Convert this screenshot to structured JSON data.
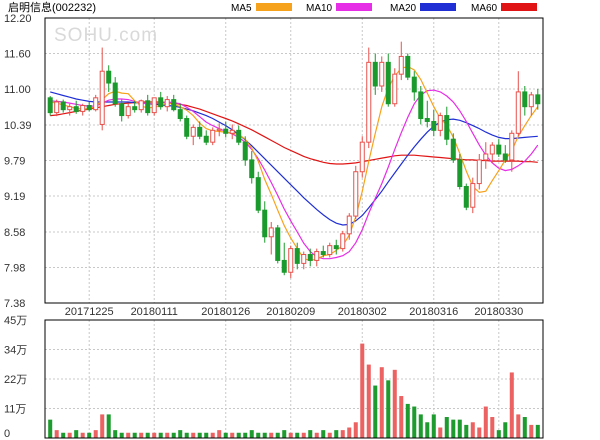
{
  "title": {
    "name": "启明信息",
    "code": "(002232)"
  },
  "watermark": "SOHU.com",
  "colors": {
    "up": "#e8514c",
    "down": "#1a9a2c",
    "volume_up": "#ec6262",
    "volume_down": "#1e9b2e",
    "grid": "#c8c8c8",
    "frame": "#000000",
    "ma5": "#f7a21c",
    "ma10": "#e62ee6",
    "ma20": "#1f2fd4",
    "ma60": "#e01414"
  },
  "chart_data": {
    "type": "candlestick",
    "ylim": [
      7.38,
      12.2
    ],
    "y_ticks": [
      "12.20",
      "11.60",
      "11.00",
      "10.39",
      "9.79",
      "9.19",
      "8.58",
      "7.98",
      "7.38"
    ],
    "x_tick_labels": [
      {
        "index": 6,
        "label": "20171225"
      },
      {
        "index": 16,
        "label": "20180111"
      },
      {
        "index": 27,
        "label": "20180126"
      },
      {
        "index": 37,
        "label": "20180209"
      },
      {
        "index": 48,
        "label": "20180302"
      },
      {
        "index": 59,
        "label": "20180316"
      },
      {
        "index": 69,
        "label": "20180330"
      }
    ],
    "legend": [
      {
        "name": "MA5",
        "color": "#f7a21c"
      },
      {
        "name": "MA10",
        "color": "#e62ee6"
      },
      {
        "name": "MA20",
        "color": "#1f2fd4"
      },
      {
        "name": "MA60",
        "color": "#e01414"
      }
    ],
    "candles": [
      [
        10.85,
        10.88,
        10.55,
        10.6
      ],
      [
        10.6,
        10.82,
        10.54,
        10.78
      ],
      [
        10.78,
        10.82,
        10.6,
        10.65
      ],
      [
        10.65,
        10.75,
        10.55,
        10.7
      ],
      [
        10.7,
        10.8,
        10.58,
        10.62
      ],
      [
        10.62,
        10.75,
        10.55,
        10.72
      ],
      [
        10.72,
        10.78,
        10.62,
        10.65
      ],
      [
        10.65,
        10.9,
        10.62,
        10.85
      ],
      [
        10.4,
        11.7,
        10.3,
        11.3
      ],
      [
        11.3,
        11.4,
        10.95,
        11.1
      ],
      [
        11.1,
        11.2,
        10.7,
        10.75
      ],
      [
        10.75,
        10.82,
        10.45,
        10.55
      ],
      [
        10.55,
        10.75,
        10.5,
        10.7
      ],
      [
        10.7,
        10.8,
        10.6,
        10.65
      ],
      [
        10.65,
        10.82,
        10.6,
        10.8
      ],
      [
        10.8,
        10.9,
        10.55,
        10.6
      ],
      [
        10.6,
        10.85,
        10.55,
        10.85
      ],
      [
        10.85,
        10.95,
        10.65,
        10.7
      ],
      [
        10.7,
        10.88,
        10.62,
        10.82
      ],
      [
        10.82,
        10.9,
        10.62,
        10.65
      ],
      [
        10.65,
        10.75,
        10.45,
        10.5
      ],
      [
        10.5,
        10.55,
        10.15,
        10.2
      ],
      [
        10.2,
        10.4,
        10.05,
        10.35
      ],
      [
        10.35,
        10.45,
        10.15,
        10.2
      ],
      [
        10.2,
        10.3,
        10.05,
        10.1
      ],
      [
        10.1,
        10.35,
        10.05,
        10.3
      ],
      [
        10.3,
        10.42,
        10.2,
        10.32
      ],
      [
        10.32,
        10.45,
        10.18,
        10.25
      ],
      [
        10.25,
        10.4,
        10.15,
        10.3
      ],
      [
        10.3,
        10.38,
        10.05,
        10.1
      ],
      [
        10.1,
        10.2,
        9.7,
        9.8
      ],
      [
        9.8,
        9.95,
        9.4,
        9.5
      ],
      [
        9.5,
        9.6,
        8.9,
        8.95
      ],
      [
        8.95,
        9.1,
        8.4,
        8.5
      ],
      [
        8.5,
        8.75,
        8.2,
        8.65
      ],
      [
        8.65,
        8.7,
        8.05,
        8.1
      ],
      [
        8.1,
        8.4,
        7.85,
        7.9
      ],
      [
        7.9,
        8.35,
        7.8,
        8.3
      ],
      [
        8.3,
        8.4,
        7.95,
        8.05
      ],
      [
        8.05,
        8.25,
        7.95,
        8.2
      ],
      [
        8.2,
        8.3,
        8.0,
        8.1
      ],
      [
        8.1,
        8.3,
        8.0,
        8.25
      ],
      [
        8.25,
        8.35,
        8.15,
        8.2
      ],
      [
        8.2,
        8.4,
        8.15,
        8.35
      ],
      [
        8.35,
        8.45,
        8.2,
        8.3
      ],
      [
        8.3,
        8.6,
        8.25,
        8.55
      ],
      [
        8.55,
        8.9,
        8.45,
        8.85
      ],
      [
        8.85,
        9.7,
        8.8,
        9.6
      ],
      [
        9.6,
        10.2,
        9.5,
        10.1
      ],
      [
        10.1,
        11.7,
        10.0,
        11.45
      ],
      [
        11.45,
        11.6,
        10.9,
        11.05
      ],
      [
        11.05,
        11.55,
        10.95,
        11.45
      ],
      [
        11.45,
        11.6,
        10.7,
        10.75
      ],
      [
        10.75,
        11.35,
        10.7,
        11.25
      ],
      [
        11.25,
        11.8,
        11.15,
        11.55
      ],
      [
        11.55,
        11.6,
        11.15,
        11.2
      ],
      [
        11.2,
        11.3,
        10.8,
        10.95
      ],
      [
        10.95,
        11.05,
        10.4,
        10.5
      ],
      [
        10.5,
        10.8,
        10.35,
        10.45
      ],
      [
        10.45,
        10.65,
        10.2,
        10.3
      ],
      [
        10.3,
        10.6,
        10.2,
        10.55
      ],
      [
        10.55,
        10.7,
        10.05,
        10.15
      ],
      [
        10.15,
        10.25,
        9.75,
        9.8
      ],
      [
        9.8,
        9.9,
        9.3,
        9.35
      ],
      [
        9.35,
        9.4,
        8.95,
        9.0
      ],
      [
        9.0,
        9.5,
        8.9,
        9.4
      ],
      [
        9.4,
        9.9,
        9.3,
        9.8
      ],
      [
        9.8,
        10.1,
        9.65,
        9.9
      ],
      [
        9.9,
        10.1,
        9.75,
        10.05
      ],
      [
        10.05,
        10.15,
        9.85,
        9.9
      ],
      [
        9.9,
        10.05,
        9.75,
        9.8
      ],
      [
        9.8,
        10.3,
        9.6,
        10.25
      ],
      [
        10.25,
        11.3,
        10.2,
        10.95
      ],
      [
        10.95,
        11.05,
        10.55,
        10.7
      ],
      [
        10.7,
        10.95,
        10.55,
        10.9
      ],
      [
        10.9,
        11.0,
        10.65,
        10.75
      ]
    ],
    "ma5": [
      10.78,
      10.76,
      10.73,
      10.7,
      10.67,
      10.66,
      10.67,
      10.7,
      10.82,
      10.92,
      10.96,
      10.93,
      10.92,
      10.8,
      10.71,
      10.68,
      10.69,
      10.72,
      10.76,
      10.74,
      10.7,
      10.64,
      10.55,
      10.42,
      10.33,
      10.29,
      10.28,
      10.27,
      10.25,
      10.23,
      10.15,
      10.0,
      9.78,
      9.47,
      9.22,
      8.95,
      8.69,
      8.48,
      8.3,
      8.13,
      8.1,
      8.12,
      8.18,
      8.2,
      8.27,
      8.35,
      8.53,
      8.84,
      9.27,
      9.78,
      10.25,
      10.7,
      11.02,
      11.22,
      11.35,
      11.38,
      11.32,
      11.16,
      10.93,
      10.7,
      10.5,
      10.39,
      10.18,
      9.91,
      9.61,
      9.35,
      9.25,
      9.27,
      9.45,
      9.62,
      9.8,
      9.96,
      10.2,
      10.38,
      10.55,
      10.7
    ],
    "ma10": [
      10.8,
      10.79,
      10.78,
      10.76,
      10.74,
      10.72,
      10.71,
      10.71,
      10.76,
      10.81,
      10.83,
      10.83,
      10.82,
      10.79,
      10.76,
      10.75,
      10.75,
      10.76,
      10.78,
      10.77,
      10.75,
      10.69,
      10.62,
      10.53,
      10.44,
      10.38,
      10.33,
      10.28,
      10.24,
      10.18,
      10.1,
      9.98,
      9.82,
      9.63,
      9.42,
      9.2,
      8.97,
      8.77,
      8.58,
      8.39,
      8.25,
      8.16,
      8.13,
      8.13,
      8.15,
      8.18,
      8.25,
      8.4,
      8.62,
      8.9,
      9.15,
      9.4,
      9.68,
      9.98,
      10.26,
      10.52,
      10.75,
      10.9,
      10.97,
      10.98,
      10.95,
      10.88,
      10.78,
      10.63,
      10.45,
      10.25,
      10.05,
      9.88,
      9.75,
      9.66,
      9.62,
      9.64,
      9.7,
      9.78,
      9.9,
      10.05
    ],
    "ma20": [
      10.95,
      10.92,
      10.89,
      10.86,
      10.83,
      10.81,
      10.79,
      10.78,
      10.78,
      10.78,
      10.78,
      10.78,
      10.78,
      10.77,
      10.76,
      10.75,
      10.74,
      10.73,
      10.72,
      10.71,
      10.69,
      10.66,
      10.63,
      10.59,
      10.55,
      10.5,
      10.44,
      10.38,
      10.31,
      10.23,
      10.14,
      10.04,
      9.93,
      9.82,
      9.71,
      9.6,
      9.49,
      9.38,
      9.27,
      9.16,
      9.06,
      8.96,
      8.87,
      8.79,
      8.73,
      8.7,
      8.71,
      8.77,
      8.86,
      8.99,
      9.13,
      9.27,
      9.43,
      9.58,
      9.73,
      9.88,
      10.02,
      10.15,
      10.27,
      10.37,
      10.44,
      10.48,
      10.49,
      10.47,
      10.43,
      10.38,
      10.33,
      10.27,
      10.22,
      10.18,
      10.16,
      10.16,
      10.17,
      10.18,
      10.19,
      10.2
    ],
    "ma60": [
      10.55,
      10.56,
      10.58,
      10.6,
      10.62,
      10.64,
      10.66,
      10.68,
      10.7,
      10.72,
      10.74,
      10.75,
      10.76,
      10.77,
      10.78,
      10.78,
      10.78,
      10.78,
      10.77,
      10.76,
      10.74,
      10.72,
      10.69,
      10.66,
      10.62,
      10.58,
      10.54,
      10.5,
      10.46,
      10.41,
      10.36,
      10.31,
      10.25,
      10.19,
      10.13,
      10.07,
      10.01,
      9.96,
      9.91,
      9.86,
      9.82,
      9.79,
      9.76,
      9.74,
      9.73,
      9.73,
      9.74,
      9.75,
      9.77,
      9.79,
      9.81,
      9.83,
      9.85,
      9.87,
      9.88,
      9.88,
      9.88,
      9.87,
      9.86,
      9.85,
      9.84,
      9.83,
      9.82,
      9.81,
      9.8,
      9.8,
      9.79,
      9.79,
      9.78,
      9.78,
      9.78,
      9.78,
      9.78,
      9.77,
      9.77,
      9.76
    ],
    "volume": {
      "ylim": [
        0,
        45
      ],
      "ticks": [
        "45万",
        "34万",
        "22万",
        "11万",
        "0"
      ],
      "values": [
        7,
        3,
        2,
        2,
        3,
        2,
        2,
        3,
        9,
        9,
        3,
        2,
        2,
        2,
        2,
        2,
        2,
        2,
        2,
        2,
        3,
        2,
        2,
        2,
        2,
        2,
        3,
        2,
        2,
        2,
        2,
        3,
        2,
        2,
        2,
        2,
        3,
        2,
        2,
        2,
        3,
        2,
        3,
        2,
        3,
        3,
        4,
        6,
        36,
        28,
        20,
        27,
        22,
        26,
        16,
        13,
        12,
        9,
        6,
        9,
        4,
        8,
        7,
        7,
        5,
        6,
        4,
        12,
        8,
        3,
        6,
        25,
        9,
        8,
        5,
        5
      ]
    }
  }
}
